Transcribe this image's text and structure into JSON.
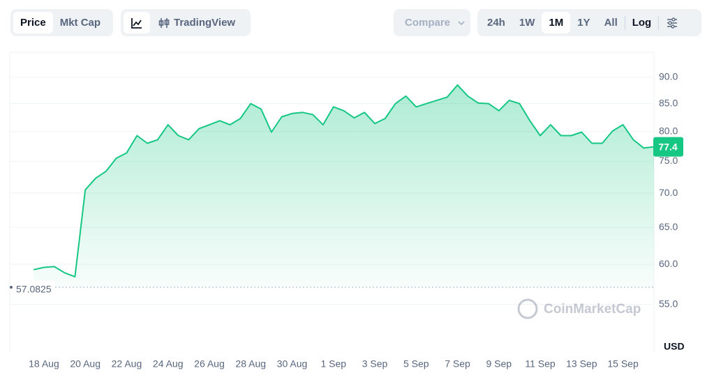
{
  "toolbar": {
    "view_tabs": [
      "Price",
      "Mkt Cap"
    ],
    "chart_tabs": [
      "TradingView"
    ],
    "compare": "Compare",
    "ranges": [
      "24h",
      "1W",
      "1M",
      "1Y",
      "All"
    ],
    "log": "Log"
  },
  "chart_data": {
    "type": "line",
    "log_scale": true,
    "grid": true,
    "categories": [
      null,
      null,
      null,
      "18 Aug",
      null,
      null,
      null,
      "20 Aug",
      null,
      null,
      null,
      "22 Aug",
      null,
      null,
      null,
      "24 Aug",
      null,
      null,
      null,
      "26 Aug",
      null,
      null,
      null,
      "28 Aug",
      null,
      null,
      null,
      "30 Aug",
      null,
      null,
      null,
      "1 Sep",
      null,
      null,
      null,
      "3 Sep",
      null,
      null,
      null,
      "5 Sep",
      null,
      null,
      null,
      "7 Sep",
      null,
      null,
      null,
      "9 Sep",
      null,
      null,
      null,
      "11 Sep",
      null,
      null,
      null,
      "13 Sep",
      null,
      null,
      null,
      "15 Sep",
      null,
      null,
      null
    ],
    "series": [
      {
        "name": "Price",
        "color": "#16c784",
        "values": [
          null,
          null,
          59.3,
          59.6,
          59.7,
          58.9,
          58.4,
          70.5,
          72.3,
          73.4,
          75.5,
          76.4,
          79.3,
          78.0,
          78.6,
          81.2,
          79.3,
          78.6,
          80.5,
          81.2,
          81.9,
          81.2,
          82.3,
          85.0,
          84.0,
          79.9,
          82.6,
          83.2,
          83.4,
          83.0,
          81.2,
          84.4,
          83.7,
          82.4,
          83.4,
          81.4,
          82.3,
          85.0,
          86.4,
          84.4,
          85.0,
          85.6,
          86.2,
          88.5,
          86.4,
          85.1,
          85.0,
          83.7,
          85.6,
          85.0,
          81.9,
          79.3,
          81.2,
          79.3,
          79.3,
          79.9,
          78.0,
          78.0,
          80.1,
          81.2,
          78.6,
          77.2,
          77.4
        ]
      }
    ],
    "ylim": [
      49.6,
      95.0
    ],
    "yticks": [
      {
        "value": 55,
        "label": "55.0"
      },
      {
        "value": 60,
        "label": "60.0"
      },
      {
        "value": 65,
        "label": "65.0"
      },
      {
        "value": 70,
        "label": "70.0"
      },
      {
        "value": 75,
        "label": "75.0"
      },
      {
        "value": 80,
        "label": "80.0"
      },
      {
        "value": 85,
        "label": "85.0"
      },
      {
        "value": 90,
        "label": "90.0"
      }
    ],
    "baseline": 57.0825,
    "last_price": 77.4,
    "currency": "USD",
    "watermark": "CoinMarketCap"
  }
}
